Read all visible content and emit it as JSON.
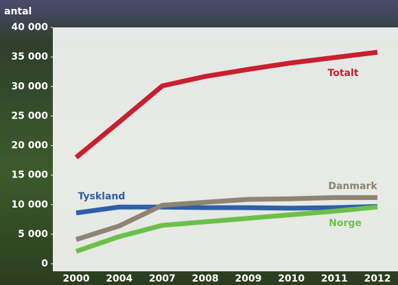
{
  "chart_data": {
    "type": "line",
    "y_label": "antal",
    "categories": [
      "2000",
      "2004",
      "2007",
      "2008",
      "2009",
      "2010",
      "2011",
      "2012"
    ],
    "series": [
      {
        "name": "Totalt",
        "color": "#c8202f",
        "values": [
          18000,
          24000,
          30100,
          31700,
          32900,
          34000,
          34900,
          35800
        ]
      },
      {
        "name": "Tyskland",
        "color": "#2f5fa8",
        "values": [
          8600,
          9600,
          9600,
          9500,
          9500,
          9400,
          9500,
          9700
        ]
      },
      {
        "name": "Danmark",
        "color": "#8f8373",
        "values": [
          4100,
          6400,
          9900,
          10400,
          10900,
          11000,
          11200,
          11200
        ]
      },
      {
        "name": "Norge",
        "color": "#6cc04a",
        "values": [
          2100,
          4600,
          6500,
          7100,
          7700,
          8300,
          8900,
          9600
        ]
      }
    ],
    "ylim": [
      0,
      40000
    ],
    "yticks": [
      {
        "value": 0,
        "label": "0"
      },
      {
        "value": 5000,
        "label": "5 000"
      },
      {
        "value": 10000,
        "label": "10 000"
      },
      {
        "value": 15000,
        "label": "15 000"
      },
      {
        "value": 20000,
        "label": "20 000"
      },
      {
        "value": 25000,
        "label": "25 000"
      },
      {
        "value": 30000,
        "label": "30 000"
      },
      {
        "value": 35000,
        "label": "35 000"
      },
      {
        "value": 40000,
        "label": "40 000"
      }
    ],
    "grid": false
  }
}
